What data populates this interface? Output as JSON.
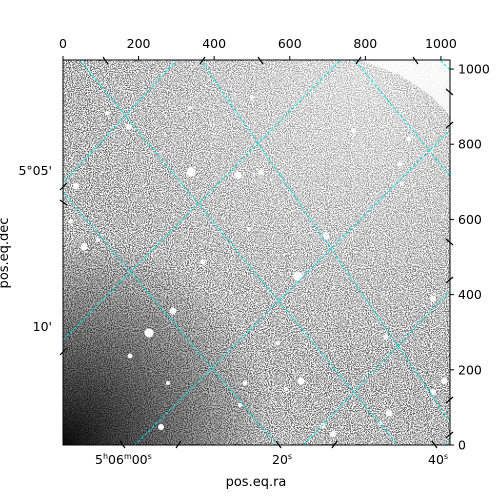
{
  "figure": {
    "xlabel": "pos.eq.ra",
    "ylabel": "pos.eq.dec",
    "top_ticks": [
      "0",
      "200",
      "400",
      "600",
      "800",
      "1000"
    ],
    "right_ticks": [
      "0",
      "200",
      "400",
      "600",
      "800",
      "1000"
    ],
    "ra_labels": {
      "label_0600": {
        "h": "5",
        "m": "06",
        "s": "00",
        "sup_h": "h",
        "sup_m": "m",
        "sup_s": "s"
      },
      "label_20": {
        "s": "20",
        "sup_s": "s"
      },
      "label_40": {
        "s": "40",
        "sup_s": "s"
      }
    },
    "dec_labels": [
      "5°05'",
      "10'"
    ],
    "grid_color": "#00e5e5",
    "frame_color": "#000000",
    "image_description_tone": "grayscale noise field with stars"
  }
}
